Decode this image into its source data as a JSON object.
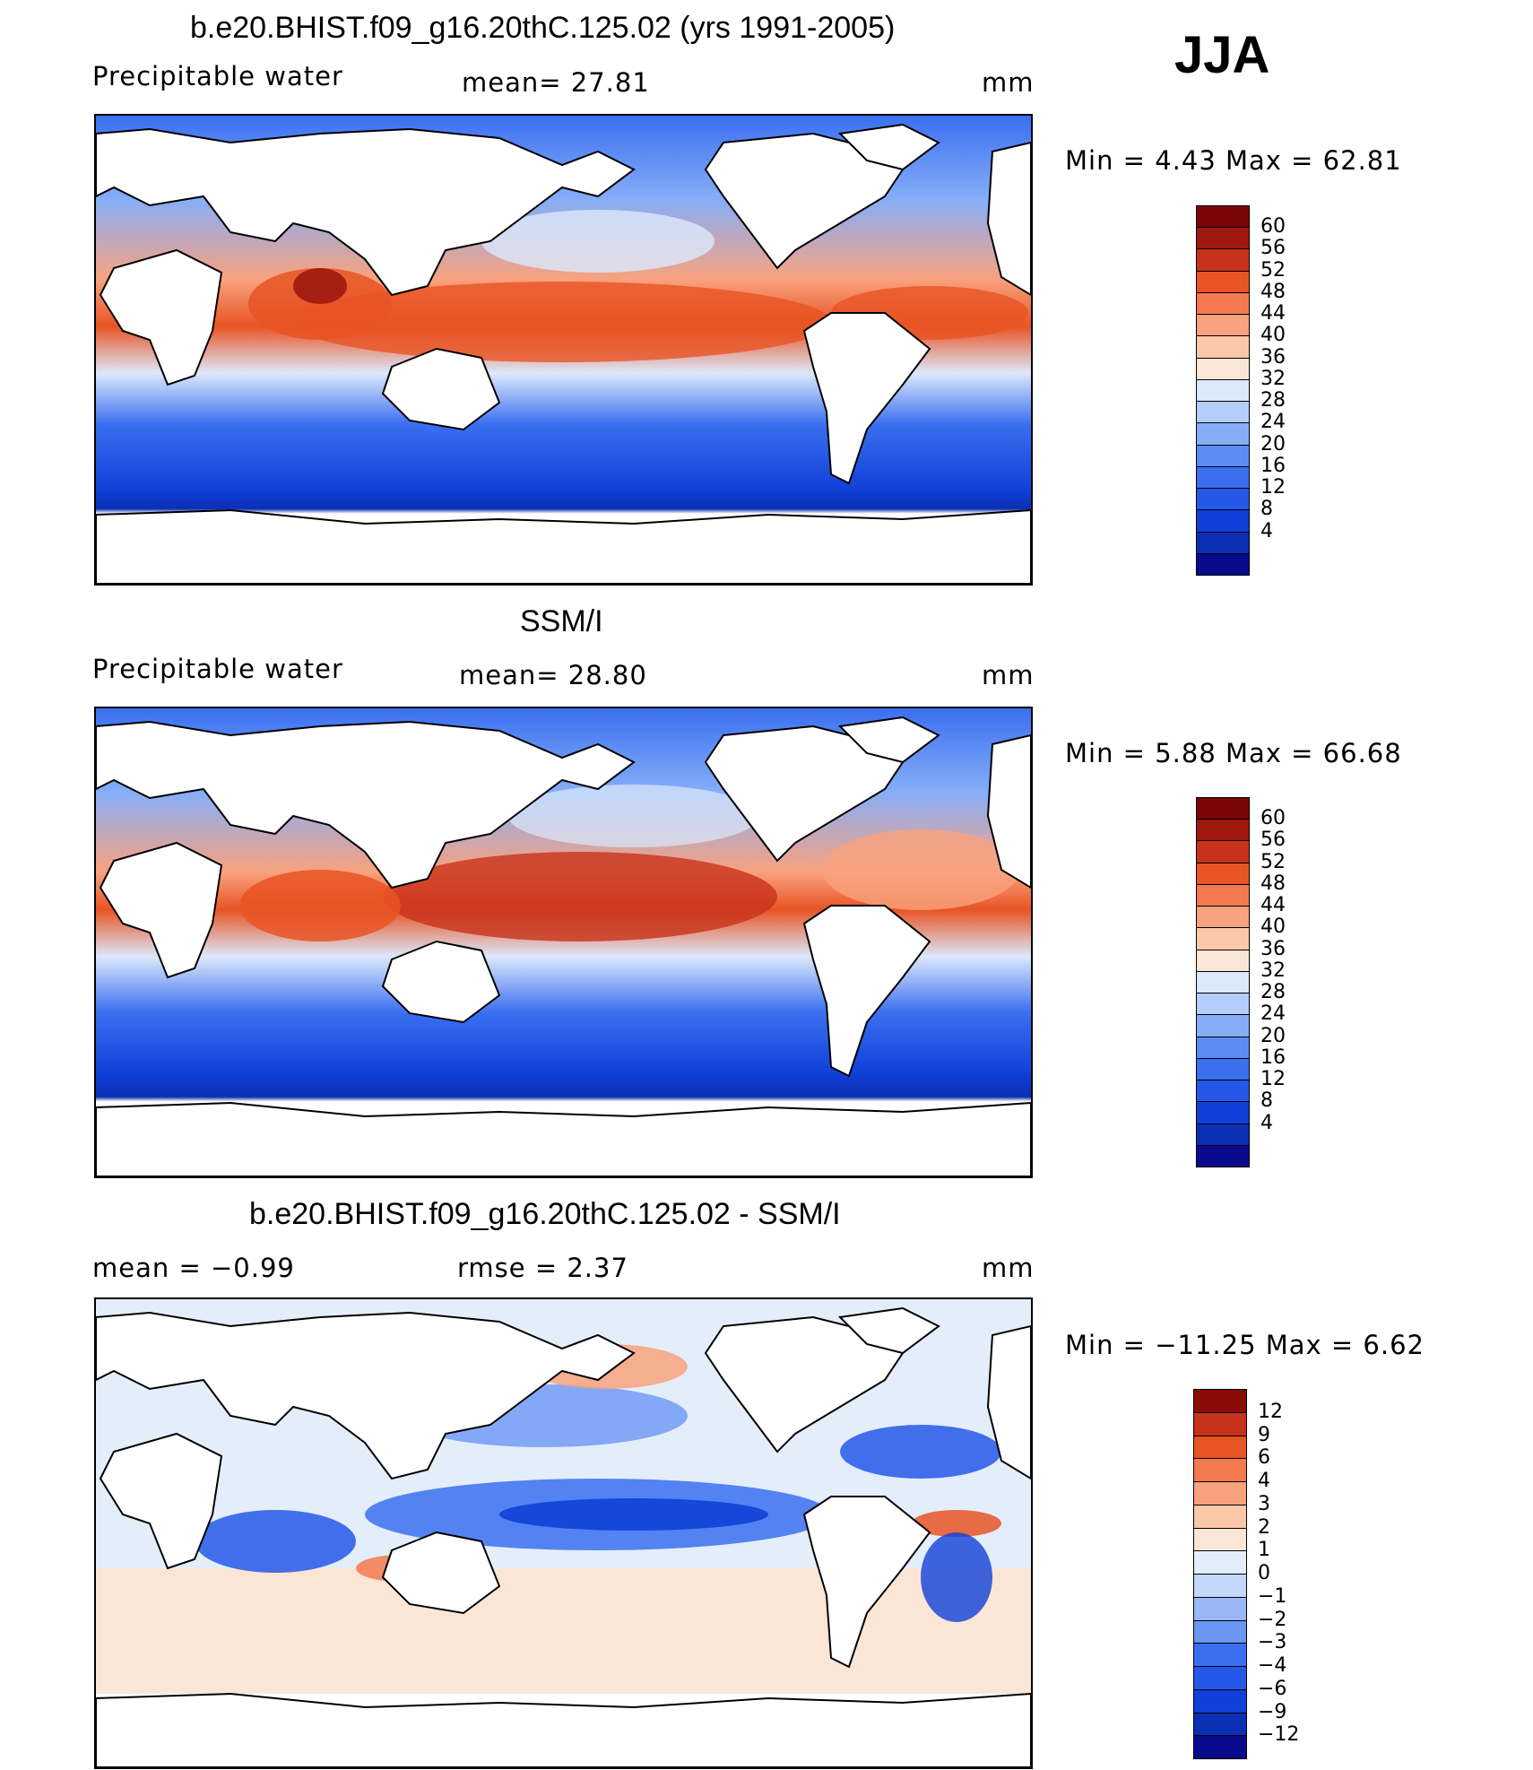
{
  "season": "JJA",
  "colors": {
    "ssm_scale": [
      "#0a0a8c",
      "#0b2fb4",
      "#1040d8",
      "#2458e8",
      "#3a6ff0",
      "#5a8cf4",
      "#86aef8",
      "#b4cdfa",
      "#dce8fb",
      "#fbe6d6",
      "#fbc8aa",
      "#f9a27e",
      "#f47a4e",
      "#e85424",
      "#c8321a",
      "#a0180e",
      "#7a0606"
    ],
    "diff_scale": [
      "#0a0a8c",
      "#0b2fb4",
      "#1040d8",
      "#2458e8",
      "#3a6ff0",
      "#6a96f4",
      "#9ab8f8",
      "#c4d8fa",
      "#e4eefb",
      "#fbe6d6",
      "#fbc8aa",
      "#f9a27e",
      "#f47a4e",
      "#e85424",
      "#c8321a",
      "#8a0c06"
    ]
  },
  "panels": [
    {
      "id": "model",
      "title": "b.e20.BHIST.f09_g16.20thC.125.02 (yrs 1991-2005)",
      "left_label": "Precipitable water",
      "center_label": "mean=   27.81",
      "units": "mm",
      "minmax": "Min =    4.43  Max =    62.81",
      "colorbar_ticks": [
        "60",
        "56",
        "52",
        "48",
        "44",
        "40",
        "36",
        "32",
        "28",
        "24",
        "20",
        "16",
        "12",
        "8",
        "4"
      ]
    },
    {
      "id": "obs",
      "title": "SSM/I",
      "left_label": "Precipitable water",
      "center_label": "mean=   28.80",
      "units": "mm",
      "minmax": "Min =    5.88  Max =    66.68",
      "colorbar_ticks": [
        "60",
        "56",
        "52",
        "48",
        "44",
        "40",
        "36",
        "32",
        "28",
        "24",
        "20",
        "16",
        "12",
        "8",
        "4"
      ]
    },
    {
      "id": "diff",
      "title": "b.e20.BHIST.f09_g16.20thC.125.02 - SSM/I",
      "left_label": "mean =   −0.99",
      "center_label": "rmse =    2.37",
      "units": "mm",
      "minmax": "Min = −11.25  Max =     6.62",
      "colorbar_ticks": [
        "12",
        "9",
        "6",
        "4",
        "3",
        "2",
        "1",
        "0",
        "−1",
        "−2",
        "−3",
        "−4",
        "−6",
        "−9",
        "−12"
      ]
    }
  ]
}
